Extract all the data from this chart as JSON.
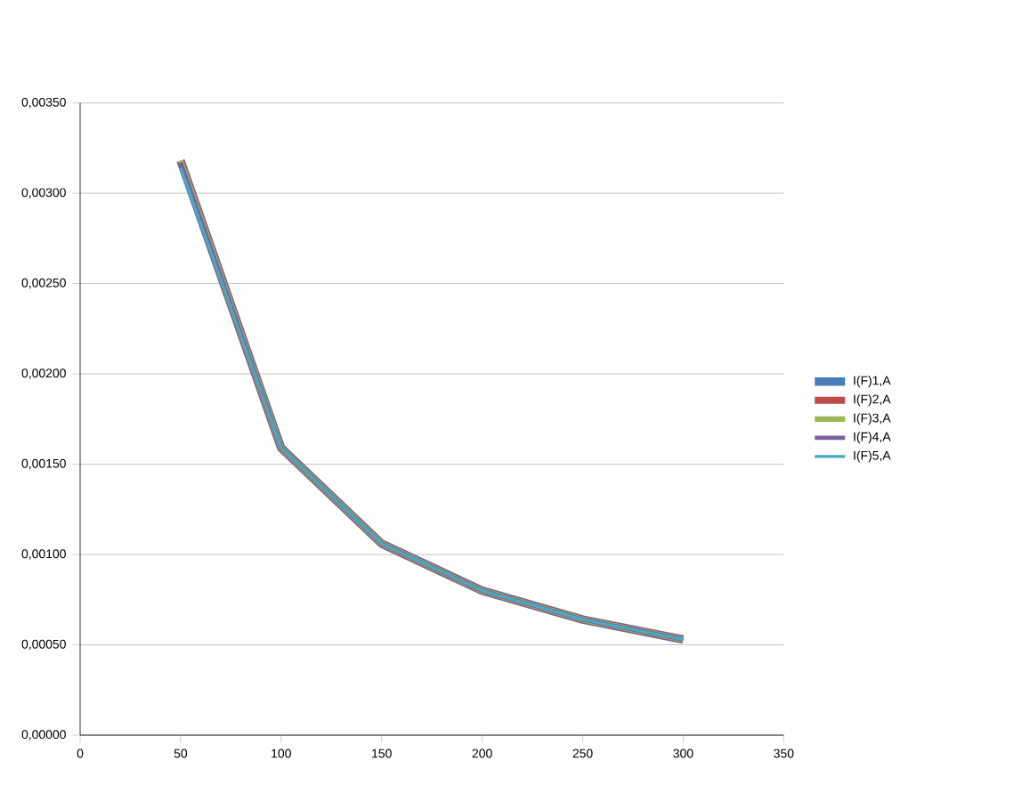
{
  "chart_data": {
    "type": "line",
    "x": [
      50,
      100,
      150,
      200,
      250,
      300
    ],
    "series": [
      {
        "name": "I(F)1,A",
        "color": "#4a7ebb",
        "values": [
          0.00318,
          0.00159,
          0.00106,
          0.0008,
          0.00064,
          0.00053
        ]
      },
      {
        "name": "I(F)2,A",
        "color": "#be4b48",
        "values": [
          0.00318,
          0.00159,
          0.00106,
          0.0008,
          0.00064,
          0.00053
        ]
      },
      {
        "name": "I(F)3,A",
        "color": "#98b954",
        "values": [
          0.00318,
          0.00159,
          0.00106,
          0.0008,
          0.00064,
          0.00053
        ]
      },
      {
        "name": "I(F)4,A",
        "color": "#7d60a0",
        "values": [
          0.00317,
          0.00159,
          0.00106,
          0.0008,
          0.00064,
          0.00053
        ]
      },
      {
        "name": "I(F)5,A",
        "color": "#46aac5",
        "values": [
          0.00314,
          0.00159,
          0.00106,
          0.0008,
          0.00064,
          0.00053
        ]
      }
    ],
    "xlim": [
      0,
      350
    ],
    "xticks": [
      0,
      50,
      100,
      150,
      200,
      250,
      300,
      350
    ],
    "ylim": [
      0,
      0.0035
    ],
    "yticks": [
      {
        "value": 0,
        "label": "0,00000"
      },
      {
        "value": 0.0005,
        "label": "0,00050"
      },
      {
        "value": 0.001,
        "label": "0,00100"
      },
      {
        "value": 0.0015,
        "label": "0,00150"
      },
      {
        "value": 0.002,
        "label": "0,00200"
      },
      {
        "value": 0.0025,
        "label": "0,00250"
      },
      {
        "value": 0.003,
        "label": "0,00300"
      },
      {
        "value": 0.0035,
        "label": "0,00350"
      }
    ],
    "grid": "y",
    "legend": "right",
    "marker": "none",
    "line_style": "solid"
  }
}
